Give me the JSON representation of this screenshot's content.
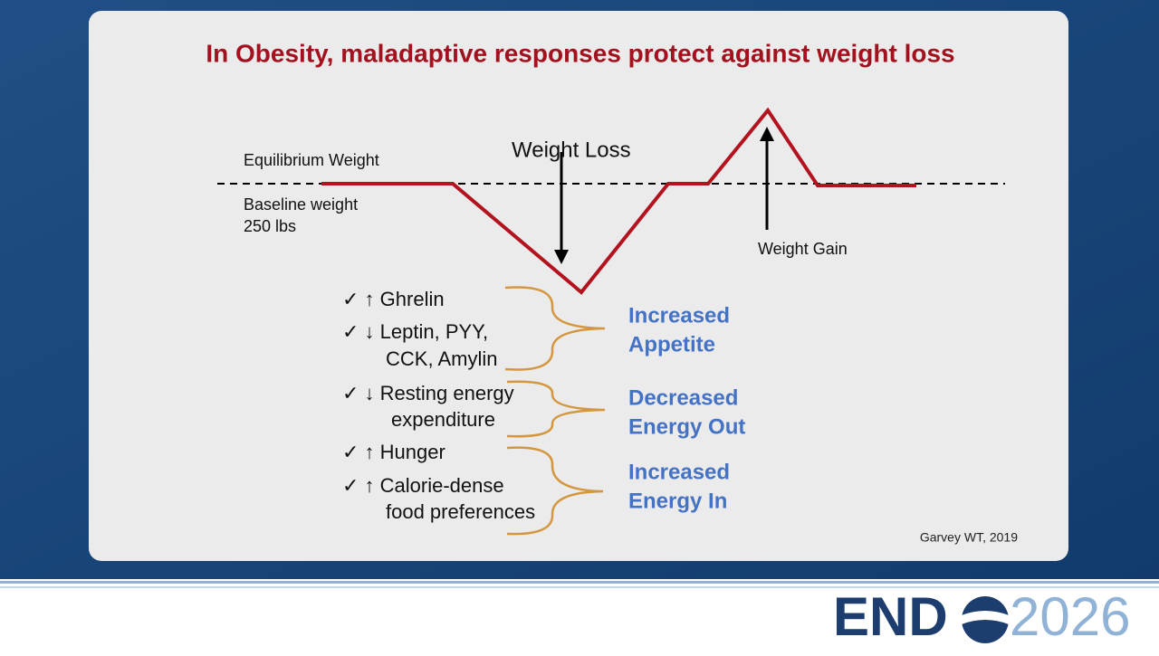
{
  "title": "In Obesity, maladaptive responses protect against weight loss",
  "diagram": {
    "equilibrium": "Equilibrium Weight",
    "baseline": [
      "Baseline weight",
      "250 lbs"
    ],
    "loss": "Weight Loss",
    "gain": "Weight Gain"
  },
  "items": [
    {
      "lines": [
        "✓ ↑ Ghrelin"
      ]
    },
    {
      "lines": [
        "✓ ↓ Leptin, PYY,",
        "CCK, Amylin"
      ]
    },
    {
      "lines": [
        "✓ ↓ Resting energy",
        "expenditure"
      ]
    },
    {
      "lines": [
        "✓ ↑ Hunger"
      ]
    },
    {
      "lines": [
        "✓ ↑ Calorie-dense",
        "food preferences"
      ]
    }
  ],
  "groups": [
    {
      "lines": [
        "Increased",
        "Appetite"
      ]
    },
    {
      "lines": [
        "Decreased",
        "Energy Out"
      ]
    },
    {
      "lines": [
        "Increased",
        "Energy In"
      ]
    }
  ],
  "citation": "Garvey WT, 2019",
  "logo": {
    "name": "END",
    "year": "2026"
  }
}
